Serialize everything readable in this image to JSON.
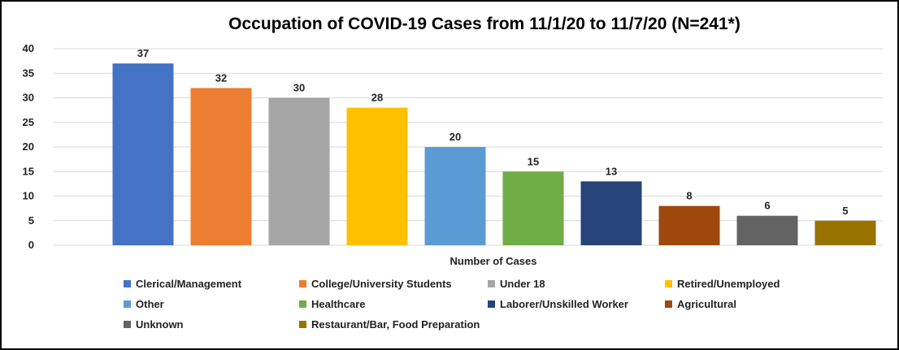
{
  "chart_data": {
    "type": "bar",
    "title": "Occupation of COVID-19 Cases from 11/1/20 to 11/7/20 (N=241*)",
    "xlabel": "Number of Cases",
    "ylabel": "",
    "ylim": [
      0,
      40
    ],
    "yticks": [
      0,
      5,
      10,
      15,
      20,
      25,
      30,
      35,
      40
    ],
    "grid": true,
    "legend_position": "bottom",
    "categories": [
      "Clerical/Management",
      "College/University Students",
      "Under 18",
      "Retired/Unemployed",
      "Other",
      "Healthcare",
      "Laborer/Unskilled Worker",
      "Agricultural",
      "Unknown",
      "Restaurant/Bar, Food Preparation"
    ],
    "values": [
      37,
      32,
      30,
      28,
      20,
      15,
      13,
      8,
      6,
      5
    ],
    "colors": [
      "#4472C4",
      "#ED7D31",
      "#A5A5A5",
      "#FFC000",
      "#5B9BD5",
      "#70AD47",
      "#264478",
      "#9E480E",
      "#636363",
      "#997300"
    ]
  }
}
